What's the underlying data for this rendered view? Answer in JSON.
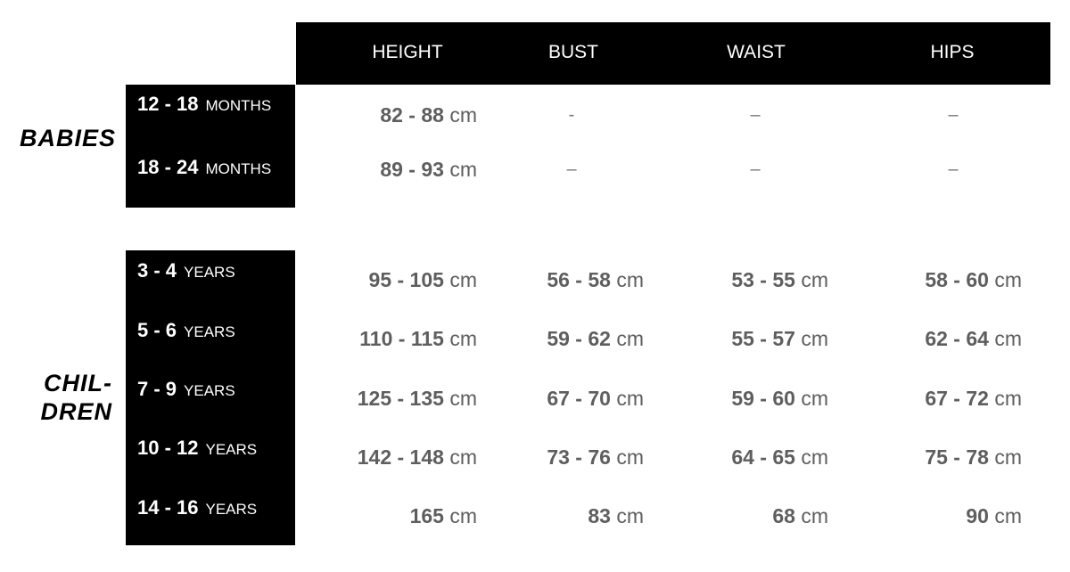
{
  "headers": [
    "HEIGHT",
    "BUST",
    "WAIST",
    "HIPS"
  ],
  "groups": {
    "babies": {
      "label": "BABIES",
      "rows": [
        {
          "age": "12 - 18",
          "unit": "MONTHS",
          "height": "82 - 88",
          "bust": "-",
          "waist": "–",
          "hips": "–"
        },
        {
          "age": "18 - 24",
          "unit": "MONTHS",
          "height": "89 - 93",
          "bust": "–",
          "waist": "–",
          "hips": "–"
        }
      ]
    },
    "children": {
      "label_line1": "CHIL-",
      "label_line2": "DREN",
      "rows": [
        {
          "age": "3 - 4",
          "unit": "YEARS",
          "height": "95 - 105",
          "bust": "56 - 58",
          "waist": "53 - 55",
          "hips": "58 - 60"
        },
        {
          "age": "5 - 6",
          "unit": "YEARS",
          "height": "110 - 115",
          "bust": "59 - 62",
          "waist": "55 - 57",
          "hips": "62 - 64"
        },
        {
          "age": "7 - 9",
          "unit": "YEARS",
          "height": "125 - 135",
          "bust": "67 - 70",
          "waist": "59 - 60",
          "hips": "67 - 72"
        },
        {
          "age": "10 - 12",
          "unit": "YEARS",
          "height": "142 - 148",
          "bust": "73 - 76",
          "waist": "64 - 65",
          "hips": "75 - 78"
        },
        {
          "age": "14 - 16",
          "unit": "YEARS",
          "height": "165",
          "bust": "83",
          "waist": "68",
          "hips": "90"
        }
      ]
    }
  },
  "unit_cm": "cm"
}
